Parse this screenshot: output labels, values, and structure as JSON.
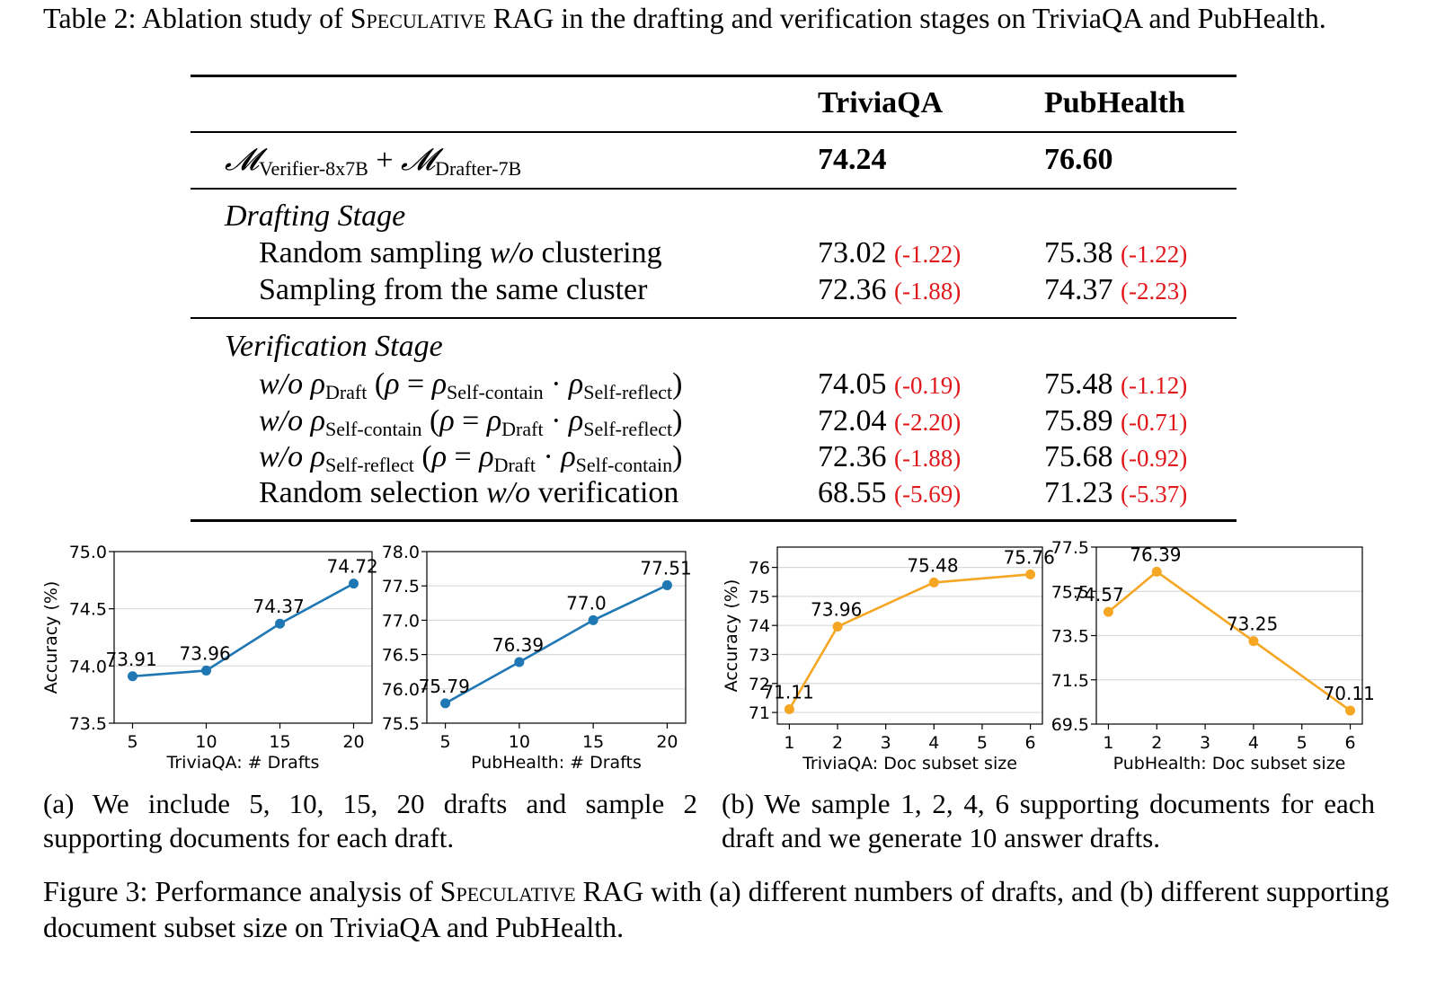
{
  "table": {
    "caption_prefix": "Table 2: Ablation study of ",
    "caption_method": "Speculative",
    "caption_suffix": " RAG in the drafting and verification stages on TriviaQA and PubHealth.",
    "col_headers": [
      "TriviaQA",
      "PubHealth"
    ],
    "main_row": {
      "verifier_sub": "Verifier-8x7B",
      "drafter_sub": "Drafter-7B",
      "values": [
        "74.24",
        "76.60"
      ]
    },
    "sections": [
      {
        "title": "Drafting Stage",
        "rows": [
          {
            "label": "Random sampling w/o clustering",
            "triviaqa": "73.02",
            "triviaqa_delta": "(-1.22)",
            "pubhealth": "75.38",
            "pubhealth_delta": "(-1.22)"
          },
          {
            "label": "Sampling from the same cluster",
            "triviaqa": "72.36",
            "triviaqa_delta": "(-1.88)",
            "pubhealth": "74.37",
            "pubhealth_delta": "(-2.23)"
          }
        ]
      },
      {
        "title": "Verification Stage",
        "rows": [
          {
            "label": "w/o ρDraft (ρ = ρSelf-contain · ρSelf-reflect)",
            "triviaqa": "74.05",
            "triviaqa_delta": "(-0.19)",
            "pubhealth": "75.48",
            "pubhealth_delta": "(-1.12)"
          },
          {
            "label": "w/o ρSelf-contain (ρ = ρDraft · ρSelf-reflect)",
            "triviaqa": "72.04",
            "triviaqa_delta": "(-2.20)",
            "pubhealth": "75.89",
            "pubhealth_delta": "(-0.71)"
          },
          {
            "label": "w/o ρSelf-reflect (ρ = ρDraft · ρSelf-contain)",
            "triviaqa": "72.36",
            "triviaqa_delta": "(-1.88)",
            "pubhealth": "75.68",
            "pubhealth_delta": "(-0.92)"
          },
          {
            "label": "Random selection w/o verification",
            "triviaqa": "68.55",
            "triviaqa_delta": "(-5.69)",
            "pubhealth": "71.23",
            "pubhealth_delta": "(-5.37)"
          }
        ]
      }
    ]
  },
  "figure": {
    "caption_prefix": "Figure 3: Performance analysis of ",
    "caption_method": "Speculative",
    "caption_suffix": " RAG with (a) different numbers of drafts, and (b) different supporting document subset size on TriviaQA and PubHealth.",
    "subcaption_a": "(a) We include 5, 10, 15, 20 drafts and sample 2 supporting documents for each draft.",
    "subcaption_b": "(b) We sample 1, 2, 4, 6 supporting documents for each draft and we generate 10 answer drafts."
  },
  "chart_data": [
    {
      "type": "line",
      "x": [
        5,
        10,
        15,
        20
      ],
      "values": [
        73.91,
        73.96,
        74.37,
        74.72
      ],
      "point_labels": [
        "73.91",
        "73.96",
        "74.37",
        "74.72"
      ],
      "xlabel": "TriviaQA: # Drafts",
      "ylabel": "Accuracy (%)",
      "xticks": [
        "5",
        "10",
        "15",
        "20"
      ],
      "yticks": [
        "73.5",
        "74.0",
        "74.5",
        "75.0"
      ],
      "ylim": [
        73.5,
        75.0
      ],
      "color": "#1f77b4",
      "grid": "horizontal"
    },
    {
      "type": "line",
      "x": [
        5,
        10,
        15,
        20
      ],
      "values": [
        75.79,
        76.39,
        77.0,
        77.51
      ],
      "point_labels": [
        "75.79",
        "76.39",
        "77.0",
        "77.51"
      ],
      "xlabel": "PubHealth: # Drafts",
      "ylabel": "",
      "xticks": [
        "5",
        "10",
        "15",
        "20"
      ],
      "yticks": [
        "75.5",
        "76.0",
        "76.5",
        "77.0",
        "77.5",
        "78.0"
      ],
      "ylim": [
        75.5,
        78.0
      ],
      "color": "#1f77b4",
      "grid": "horizontal"
    },
    {
      "type": "line",
      "x": [
        1,
        2,
        4,
        6
      ],
      "values": [
        71.11,
        73.96,
        75.48,
        75.76
      ],
      "point_labels": [
        "71.11",
        "73.96",
        "75.48",
        "75.76"
      ],
      "xlabel": "TriviaQA: Doc subset size",
      "ylabel": "Accuracy (%)",
      "xticks": [
        "1",
        "2",
        "3",
        "4",
        "5",
        "6"
      ],
      "yticks": [
        "71",
        "72",
        "73",
        "74",
        "75",
        "76"
      ],
      "ylim": [
        70.6,
        76.7
      ],
      "color": "#f5a623",
      "grid": "horizontal"
    },
    {
      "type": "line",
      "x": [
        1,
        2,
        4,
        6
      ],
      "values": [
        74.57,
        76.39,
        73.25,
        70.11
      ],
      "point_labels": [
        "74.57",
        "76.39",
        "73.25",
        "70.11"
      ],
      "xlabel": "PubHealth: Doc subset size",
      "ylabel": "",
      "xticks": [
        "1",
        "2",
        "3",
        "4",
        "5",
        "6"
      ],
      "yticks": [
        "69.5",
        "71.5",
        "73.5",
        "75.5",
        "77.5"
      ],
      "ylim": [
        69.5,
        77.5
      ],
      "color": "#f5a623",
      "grid": "horizontal"
    }
  ]
}
